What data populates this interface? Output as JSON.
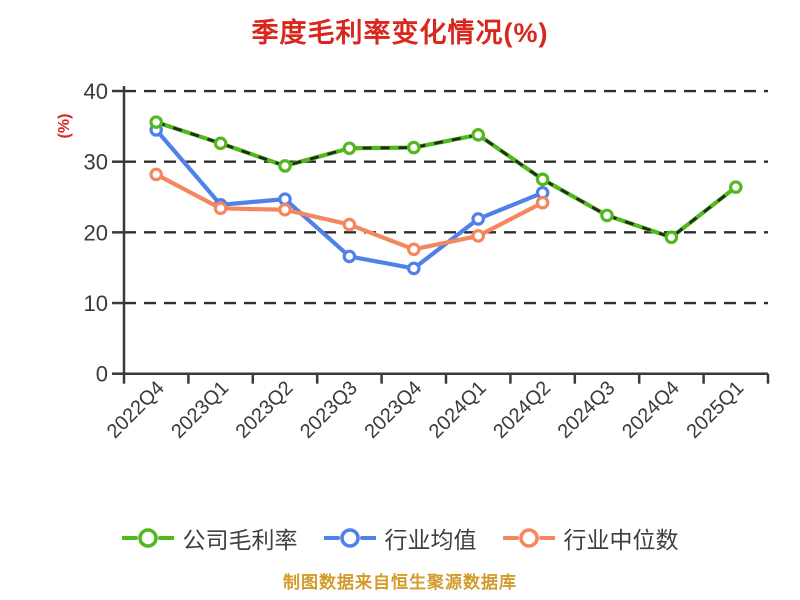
{
  "title": "季度毛利率变化情况(%)",
  "caption": "制图数据来自恒生聚源数据库",
  "y_axis_unit": "(%)",
  "colors": {
    "title_red": "#d9271e",
    "caption_gold": "#d29b2b",
    "axis_text": "#3a3a3c",
    "grid_line": "#2e2e2e",
    "company_green": "#52b81e",
    "industry_blue": "#4f81e8",
    "median_orange": "#f5875f",
    "dash_overlay": "#1c1c1c",
    "marker_fill": "#ffffff"
  },
  "chart_data": {
    "type": "line",
    "title": "季度毛利率变化情况(%)",
    "xlabel": "",
    "ylabel": "(%)",
    "ylim": [
      0,
      40
    ],
    "yticks": [
      0,
      10,
      20,
      30,
      40
    ],
    "grid": "horizontal-dashed",
    "legend_position": "bottom",
    "categories": [
      "2022Q4",
      "2023Q1",
      "2023Q2",
      "2023Q3",
      "2023Q4",
      "2024Q1",
      "2024Q2",
      "2024Q3",
      "2024Q4",
      "2025Q1"
    ],
    "series": [
      {
        "name": "公司毛利率",
        "color": "#52b81e",
        "line_style": "solid-with-dark-dash-overlay",
        "values": [
          35.6,
          32.6,
          29.4,
          31.9,
          32.0,
          33.8,
          27.5,
          22.4,
          19.3,
          26.4
        ]
      },
      {
        "name": "行业均值",
        "color": "#4f81e8",
        "line_style": "solid",
        "values": [
          34.5,
          23.9,
          24.7,
          16.6,
          14.9,
          21.9,
          25.6,
          null,
          null,
          null
        ]
      },
      {
        "name": "行业中位数",
        "color": "#f5875f",
        "line_style": "solid",
        "values": [
          28.2,
          23.4,
          23.2,
          21.1,
          17.6,
          19.5,
          24.2,
          null,
          null,
          null
        ]
      }
    ]
  }
}
